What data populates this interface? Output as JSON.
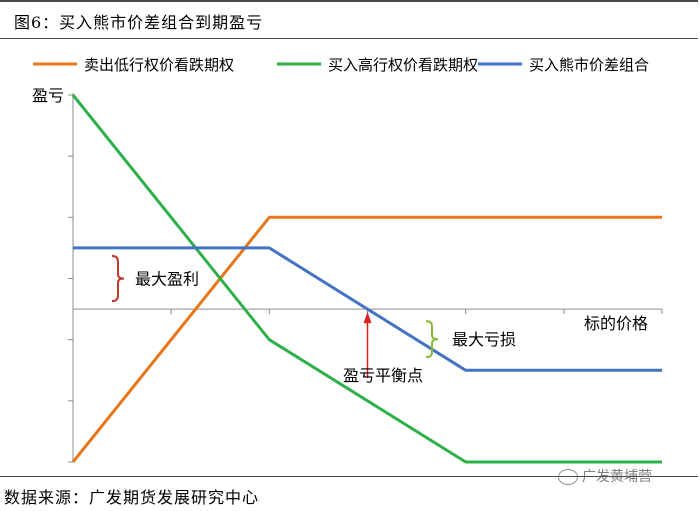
{
  "header": {
    "title": "图6：买入熊市价差组合到期盈亏"
  },
  "footer": {
    "source": "数据来源：广发期货发展研究中心"
  },
  "watermark": {
    "text": "广发黄埔营",
    "icon": "wechat-icon"
  },
  "chart_data": {
    "type": "line",
    "ylabel": "盈亏",
    "xlabel": "标的价格",
    "x": [
      0,
      2,
      3,
      4,
      6
    ],
    "series": [
      {
        "name": "卖出低行权价看跌期权",
        "color": "#E8761A",
        "values": [
          -2.5,
          1.5,
          1.5,
          1.5,
          1.5
        ]
      },
      {
        "name": "买入高行权价看跌期权",
        "color": "#2DB04A",
        "values": [
          3.5,
          -0.5,
          -1.5,
          -2.5,
          -2.5
        ]
      },
      {
        "name": "买入熊市价差组合",
        "color": "#4472C4",
        "values": [
          1,
          1,
          0,
          -1,
          -1
        ]
      }
    ],
    "annotations": [
      {
        "text": "最大盈利",
        "color": "#C0392B"
      },
      {
        "text": "最大亏损",
        "color": "#8DB63C"
      },
      {
        "text": "盈亏平衡点",
        "color": "#E02020"
      }
    ],
    "ylim": [
      -2.5,
      3.5
    ],
    "xlim": [
      0,
      6
    ],
    "grid": false,
    "legend": "top"
  }
}
